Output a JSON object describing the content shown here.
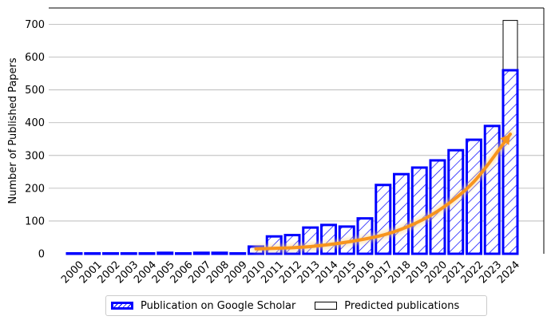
{
  "chart_data": {
    "type": "bar",
    "title": "",
    "xlabel": "",
    "ylabel": "Number of Published Papers",
    "ylim": [
      0,
      750
    ],
    "yticks": [
      0,
      100,
      200,
      300,
      400,
      500,
      600,
      700
    ],
    "grid": "horizontal",
    "legend_position": "bottom-center",
    "categories": [
      "2000",
      "2001",
      "2002",
      "2003",
      "2004",
      "2005",
      "2006",
      "2007",
      "2008",
      "2009",
      "2010",
      "2011",
      "2012",
      "2013",
      "2014",
      "2015",
      "2016",
      "2017",
      "2018",
      "2019",
      "2020",
      "2021",
      "2022",
      "2023",
      "2024"
    ],
    "series": [
      {
        "name": "Publication on Google Scholar",
        "color": "#0000ff",
        "pattern": "diagonal-hatch",
        "values": [
          1,
          1,
          1,
          1,
          1,
          3,
          1,
          3,
          3,
          1,
          22,
          53,
          57,
          80,
          88,
          83,
          108,
          210,
          243,
          263,
          285,
          316,
          348,
          390,
          560
        ]
      },
      {
        "name": "Predicted publications",
        "color": "#000000",
        "pattern": "none",
        "values": [
          null,
          null,
          null,
          null,
          null,
          null,
          null,
          null,
          null,
          null,
          null,
          null,
          null,
          null,
          null,
          null,
          null,
          null,
          null,
          null,
          null,
          null,
          null,
          null,
          712
        ]
      }
    ],
    "annotation": {
      "type": "trend-arrow",
      "color": "#f7941d",
      "from_x": "2010",
      "to_x": "2024",
      "path_values": [
        [
          2010,
          15
        ],
        [
          2013,
          22
        ],
        [
          2016,
          45
        ],
        [
          2018,
          75
        ],
        [
          2020,
          130
        ],
        [
          2022,
          220
        ],
        [
          2024,
          365
        ]
      ]
    }
  }
}
